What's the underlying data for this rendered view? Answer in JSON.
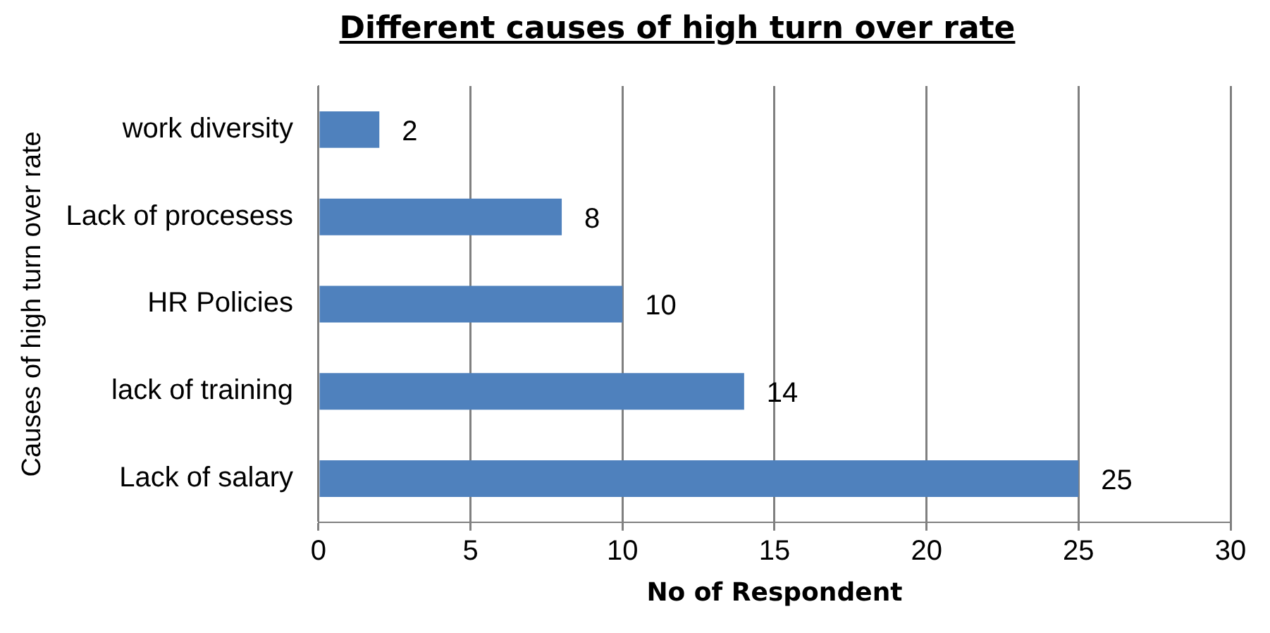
{
  "chart_data": {
    "type": "bar",
    "orientation": "horizontal",
    "title": "Different causes of high turn over rate",
    "xlabel": "No of Respondent",
    "ylabel": "Causes of high turn over rate",
    "categories": [
      "work diversity",
      "Lack of procesess",
      "HR Policies",
      "lack of training",
      "Lack of salary"
    ],
    "values": [
      2,
      8,
      10,
      14,
      25
    ],
    "color": "#4f81bd",
    "xlim": [
      0,
      30
    ],
    "xticks": [
      0,
      5,
      10,
      15,
      20,
      25,
      30
    ],
    "grid": "x",
    "data_labels": true,
    "legend": false
  }
}
